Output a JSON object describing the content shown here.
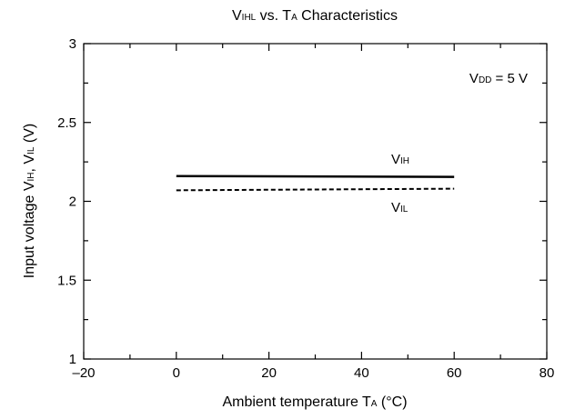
{
  "chart_data": {
    "type": "line",
    "title": {
      "main": "V",
      "main_sub": "IHL",
      "mid": " vs. T",
      "mid_sub": "A",
      "tail": " Characteristics"
    },
    "xlabel": {
      "main": "Ambient temperature  T",
      "sub": "A",
      "tail": " (°C)"
    },
    "ylabel": {
      "p1": "Input voltage  V",
      "s1": "IH",
      "p2": ", V",
      "s2": "IL",
      "p3": " (V)"
    },
    "xlim": [
      -20,
      80
    ],
    "ylim": [
      1,
      3
    ],
    "x_ticks": [
      -20,
      0,
      20,
      40,
      60,
      80
    ],
    "x_tick_labels": [
      "–20",
      "0",
      "20",
      "40",
      "60",
      "80"
    ],
    "x_minor_step": 10,
    "y_ticks": [
      1,
      1.5,
      2,
      2.5,
      3
    ],
    "y_tick_labels": [
      "1",
      "1.5",
      "2",
      "2.5",
      "3"
    ],
    "y_minor_step": 0.25,
    "grid": false,
    "annotation": {
      "main": "V",
      "sub": "DD",
      "tail": " = 5 V"
    },
    "series": [
      {
        "name": "VIH",
        "label_main": "V",
        "label_sub": "IH",
        "style": "solid",
        "x": [
          0,
          60
        ],
        "y": [
          2.16,
          2.155
        ]
      },
      {
        "name": "VIL",
        "label_main": "V",
        "label_sub": "IL",
        "style": "dashed",
        "x": [
          0,
          60
        ],
        "y": [
          2.07,
          2.08
        ]
      }
    ]
  }
}
